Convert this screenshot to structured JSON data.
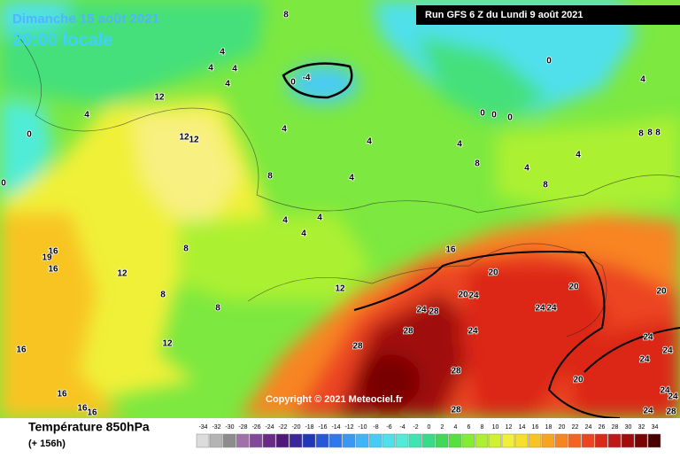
{
  "header": {
    "title": "Dimanche 15 août 2021",
    "subtitle": "20:00 locale",
    "run": "Run GFS 6 Z du Lundi 9 août 2021",
    "copyright": "Copyright © 2021 Meteociel.fr"
  },
  "footer": {
    "variable": "Température 850hPa",
    "lead_time": "(+ 156h)"
  },
  "scale": {
    "values": [
      -34,
      -32,
      -30,
      -28,
      -26,
      -24,
      -22,
      -20,
      -18,
      -16,
      -14,
      -12,
      -10,
      -8,
      -6,
      -4,
      -2,
      0,
      2,
      4,
      6,
      8,
      10,
      12,
      14,
      16,
      18,
      20,
      22,
      24,
      26,
      28,
      30,
      32,
      34
    ],
    "colors": [
      "#dcdcdc",
      "#b4b4b4",
      "#8c8c8c",
      "#a070a8",
      "#84489a",
      "#6a2a88",
      "#501878",
      "#3a2898",
      "#2038b8",
      "#2858d8",
      "#3078ec",
      "#3898f4",
      "#40b4f8",
      "#48ccf4",
      "#50e0ec",
      "#50ecd8",
      "#40e4b0",
      "#38dc88",
      "#40d858",
      "#58e040",
      "#84ec34",
      "#acf030",
      "#d0f030",
      "#f0f038",
      "#f8e028",
      "#f8c424",
      "#f8a420",
      "#f88420",
      "#f46420",
      "#ec4420",
      "#dc2818",
      "#c01818",
      "#a00c0c",
      "#780404",
      "#480000"
    ]
  },
  "contour_labels": [
    8,
    4,
    4,
    4,
    4,
    0,
    -4,
    12,
    4,
    0,
    12,
    12,
    4,
    4,
    4,
    0,
    4,
    0,
    0,
    0,
    8,
    8,
    8,
    4,
    8,
    4,
    8,
    8,
    4,
    4,
    4,
    4,
    8,
    12,
    8,
    8,
    12,
    16,
    16,
    19,
    16,
    20,
    20,
    24,
    20,
    20,
    24,
    28,
    24,
    24,
    28,
    24,
    28,
    12,
    16,
    24,
    24,
    24,
    28,
    20,
    24,
    24,
    16,
    16,
    16,
    28,
    24,
    28,
    0
  ]
}
